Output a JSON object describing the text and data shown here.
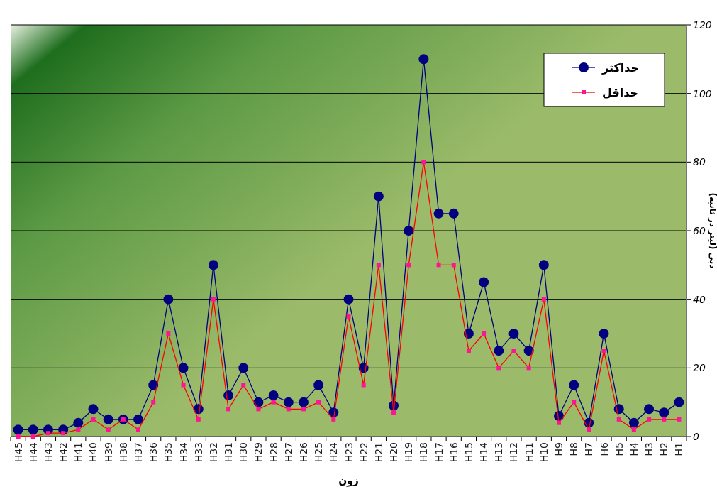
{
  "chart_data": {
    "type": "line",
    "xlabel": "زون",
    "ylabel": "دبی (لیتر در ثانیه)",
    "categories": [
      "H45",
      "H44",
      "H43",
      "H42",
      "H41",
      "H40",
      "H39",
      "H38",
      "H37",
      "H36",
      "H35",
      "H34",
      "H33",
      "H32",
      "H31",
      "H30",
      "H29",
      "H28",
      "H27",
      "H26",
      "H25",
      "H24",
      "H23",
      "H22",
      "H21",
      "H20",
      "H19",
      "H18",
      "H17",
      "H16",
      "H15",
      "H14",
      "H13",
      "H12",
      "H11",
      "H10",
      "H9",
      "H8",
      "H7",
      "H6",
      "H5",
      "H4",
      "H3",
      "H2",
      "H1"
    ],
    "series": [
      {
        "name": "حداکثر",
        "color": "#000080",
        "marker": "circle",
        "values": [
          2,
          2,
          2,
          2,
          4,
          8,
          5,
          5,
          5,
          15,
          40,
          20,
          8,
          50,
          12,
          20,
          10,
          12,
          10,
          10,
          15,
          7,
          40,
          20,
          70,
          9,
          60,
          110,
          65,
          65,
          30,
          45,
          25,
          30,
          25,
          50,
          6,
          15,
          4,
          30,
          8,
          4,
          8,
          7,
          10
        ]
      },
      {
        "name": "حداقل",
        "color": "#ff0000",
        "marker": "square",
        "values": [
          0,
          0,
          1,
          1,
          2,
          5,
          2,
          5,
          2,
          10,
          30,
          15,
          5,
          40,
          8,
          15,
          8,
          10,
          8,
          8,
          10,
          5,
          35,
          15,
          50,
          7,
          50,
          80,
          50,
          50,
          25,
          30,
          20,
          25,
          20,
          40,
          4,
          10,
          2,
          25,
          5,
          2,
          5,
          5,
          5
        ]
      }
    ],
    "ylim": [
      0,
      120
    ],
    "yticks": [
      0,
      20,
      40,
      60,
      80,
      100,
      120
    ],
    "grid": "y",
    "legend": "top right"
  }
}
